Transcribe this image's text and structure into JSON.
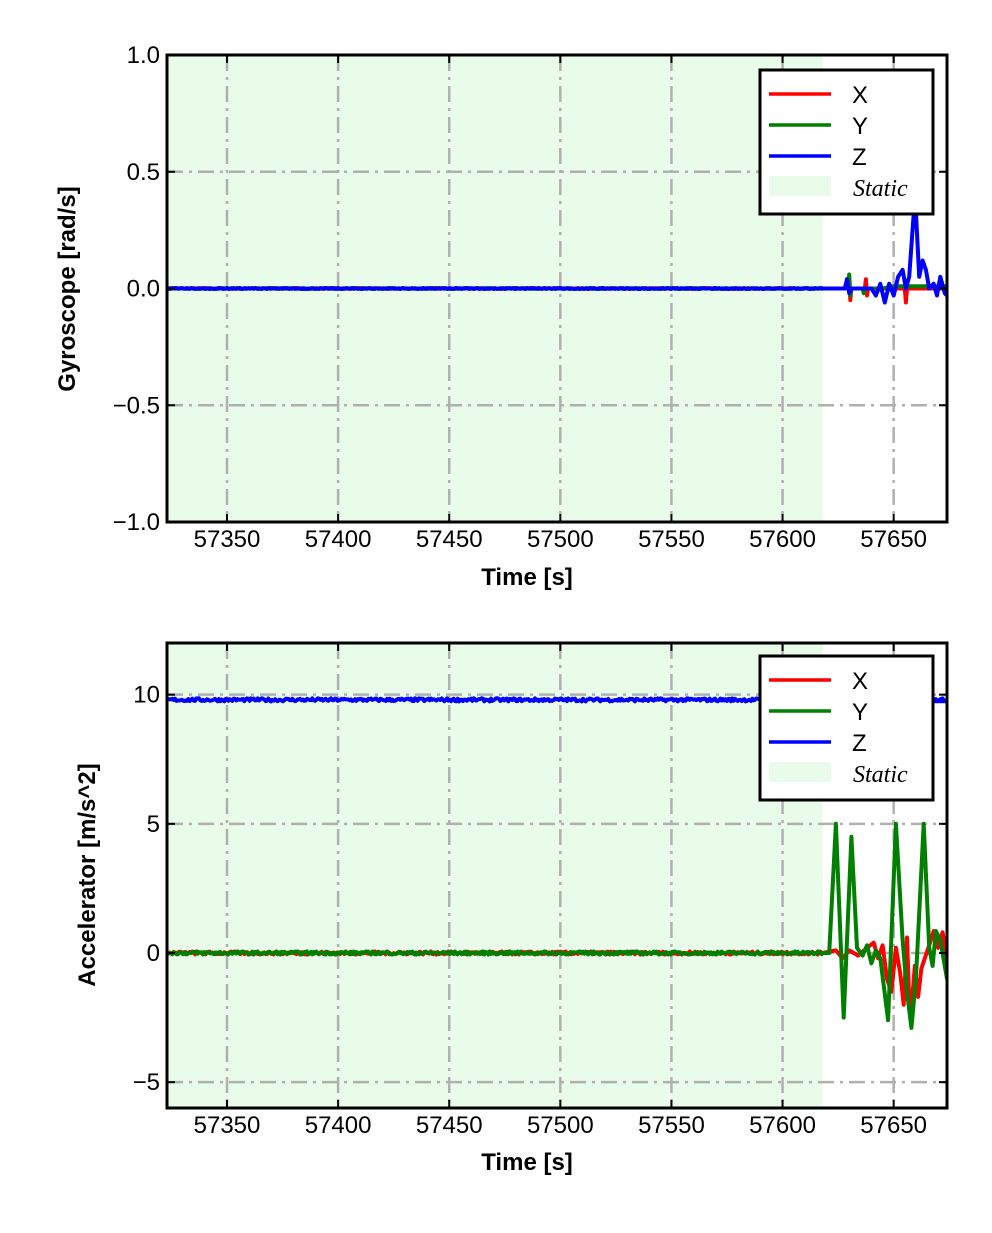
{
  "chart_data": [
    {
      "type": "line",
      "title": "",
      "xlabel": "Time [s]",
      "ylabel": "Gyroscope [rad/s]",
      "xlim": [
        57323,
        57674
      ],
      "ylim": [
        -1.0,
        1.0
      ],
      "xticks": [
        57350,
        57400,
        57450,
        57500,
        57550,
        57600,
        57650
      ],
      "xtick_labels": [
        "57350",
        "57400",
        "57450",
        "57500",
        "57550",
        "57600",
        "57650"
      ],
      "yticks": [
        1.0,
        0.5,
        0.0,
        -0.5,
        -1.0
      ],
      "ytick_labels": [
        "1.0",
        "0.5",
        "0.0",
        "−0.5",
        "−1.0"
      ],
      "grid": true,
      "legend_position": "top-right",
      "static_region": [
        57323,
        57618
      ],
      "static_label": "Static",
      "series": [
        {
          "name": "X",
          "color": "#ff0000",
          "static_value": 0.0,
          "points": [
            [
              57618,
              0
            ],
            [
              57629.5,
              0
            ],
            [
              57630,
              0.04
            ],
            [
              57630.5,
              -0.05
            ],
            [
              57631,
              0
            ],
            [
              57637,
              0
            ],
            [
              57637.5,
              0.04
            ],
            [
              57638,
              -0.03
            ],
            [
              57638.5,
              0
            ],
            [
              57655,
              0
            ],
            [
              57655.5,
              -0.06
            ],
            [
              57656,
              0
            ],
            [
              57674,
              0
            ]
          ]
        },
        {
          "name": "Y",
          "color": "#008000",
          "static_value": 0.0,
          "points": [
            [
              57618,
              0
            ],
            [
              57629.5,
              0
            ],
            [
              57630,
              0.06
            ],
            [
              57630.5,
              -0.03
            ],
            [
              57631,
              0
            ],
            [
              57636,
              0
            ],
            [
              57636.5,
              -0.02
            ],
            [
              57637,
              0
            ],
            [
              57645,
              0
            ],
            [
              57650,
              0.01
            ],
            [
              57660,
              0.01
            ],
            [
              57674,
              0.01
            ]
          ]
        },
        {
          "name": "Z",
          "color": "#0000ff",
          "static_value": 0.0,
          "points": [
            [
              57618,
              0
            ],
            [
              57628,
              0
            ],
            [
              57629,
              0.04
            ],
            [
              57630,
              -0.02
            ],
            [
              57631,
              0
            ],
            [
              57640,
              0
            ],
            [
              57642,
              -0.03
            ],
            [
              57644,
              0.02
            ],
            [
              57646,
              -0.06
            ],
            [
              57648,
              0.02
            ],
            [
              57650,
              -0.03
            ],
            [
              57652,
              0.05
            ],
            [
              57654,
              0.08
            ],
            [
              57655.5,
              0.0
            ],
            [
              57657,
              0.05
            ],
            [
              57659,
              0.32
            ],
            [
              57660,
              0.33
            ],
            [
              57661.5,
              0.05
            ],
            [
              57663,
              0.12
            ],
            [
              57664.5,
              0.08
            ],
            [
              57666,
              0.0
            ],
            [
              57668,
              0.02
            ],
            [
              57669.5,
              -0.03
            ],
            [
              57671,
              0.05
            ],
            [
              57673,
              -0.02
            ],
            [
              57674,
              -0.03
            ]
          ]
        }
      ]
    },
    {
      "type": "line",
      "title": "",
      "xlabel": "Time [s]",
      "ylabel": "Accelerator [m/s^2]",
      "xlim": [
        57323,
        57674
      ],
      "ylim": [
        -6,
        12
      ],
      "xticks": [
        57350,
        57400,
        57450,
        57500,
        57550,
        57600,
        57650
      ],
      "xtick_labels": [
        "57350",
        "57400",
        "57450",
        "57500",
        "57550",
        "57600",
        "57650"
      ],
      "yticks": [
        10,
        5,
        0,
        -5
      ],
      "ytick_labels": [
        "10",
        "5",
        "0",
        "−5"
      ],
      "grid": true,
      "legend_position": "top-right",
      "static_region": [
        57323,
        57618
      ],
      "static_label": "Static",
      "series": [
        {
          "name": "X",
          "color": "#ff0000",
          "static_value": 0.0,
          "points": [
            [
              57618,
              0
            ],
            [
              57624,
              0.1
            ],
            [
              57627,
              -0.2
            ],
            [
              57630,
              0.1
            ],
            [
              57634,
              -0.1
            ],
            [
              57638,
              0.2
            ],
            [
              57641,
              0.4
            ],
            [
              57643,
              -0.2
            ],
            [
              57645,
              0.3
            ],
            [
              57647,
              -1.0
            ],
            [
              57649,
              -1.5
            ],
            [
              57651,
              0.2
            ],
            [
              57653,
              -0.8
            ],
            [
              57654.5,
              -2.0
            ],
            [
              57656,
              0.6
            ],
            [
              57657,
              -1.8
            ],
            [
              57658,
              -2.2
            ],
            [
              57659.5,
              -0.5
            ],
            [
              57661,
              -1.7
            ],
            [
              57662.5,
              -0.6
            ],
            [
              57664,
              -0.2
            ],
            [
              57666,
              0.3
            ],
            [
              57668,
              0.85
            ],
            [
              57670,
              0.2
            ],
            [
              57672,
              0.8
            ],
            [
              57674,
              -0.2
            ]
          ]
        },
        {
          "name": "Y",
          "color": "#008000",
          "static_value": 0.0,
          "points": [
            [
              57618,
              0
            ],
            [
              57621,
              0
            ],
            [
              57624,
              5
            ],
            [
              57627.5,
              -2.5
            ],
            [
              57631,
              4.5
            ],
            [
              57633.5,
              0.2
            ],
            [
              57636,
              -0.1
            ],
            [
              57638,
              0.3
            ],
            [
              57640,
              -0.4
            ],
            [
              57642,
              0.1
            ],
            [
              57644,
              -0.2
            ],
            [
              57647.5,
              -2.6
            ],
            [
              57651,
              5
            ],
            [
              57654,
              0.5
            ],
            [
              57656,
              -1.5
            ],
            [
              57658,
              -2.9
            ],
            [
              57660,
              -1.0
            ],
            [
              57663.5,
              5
            ],
            [
              57666,
              0.2
            ],
            [
              57667.5,
              -0.5
            ],
            [
              57669,
              0.85
            ],
            [
              57671,
              0.5
            ],
            [
              57674,
              -1.0
            ]
          ]
        },
        {
          "name": "Z",
          "color": "#0000ff",
          "static_value": 9.8,
          "points": [
            [
              57618,
              9.8
            ],
            [
              57674,
              9.8
            ]
          ]
        }
      ]
    }
  ]
}
